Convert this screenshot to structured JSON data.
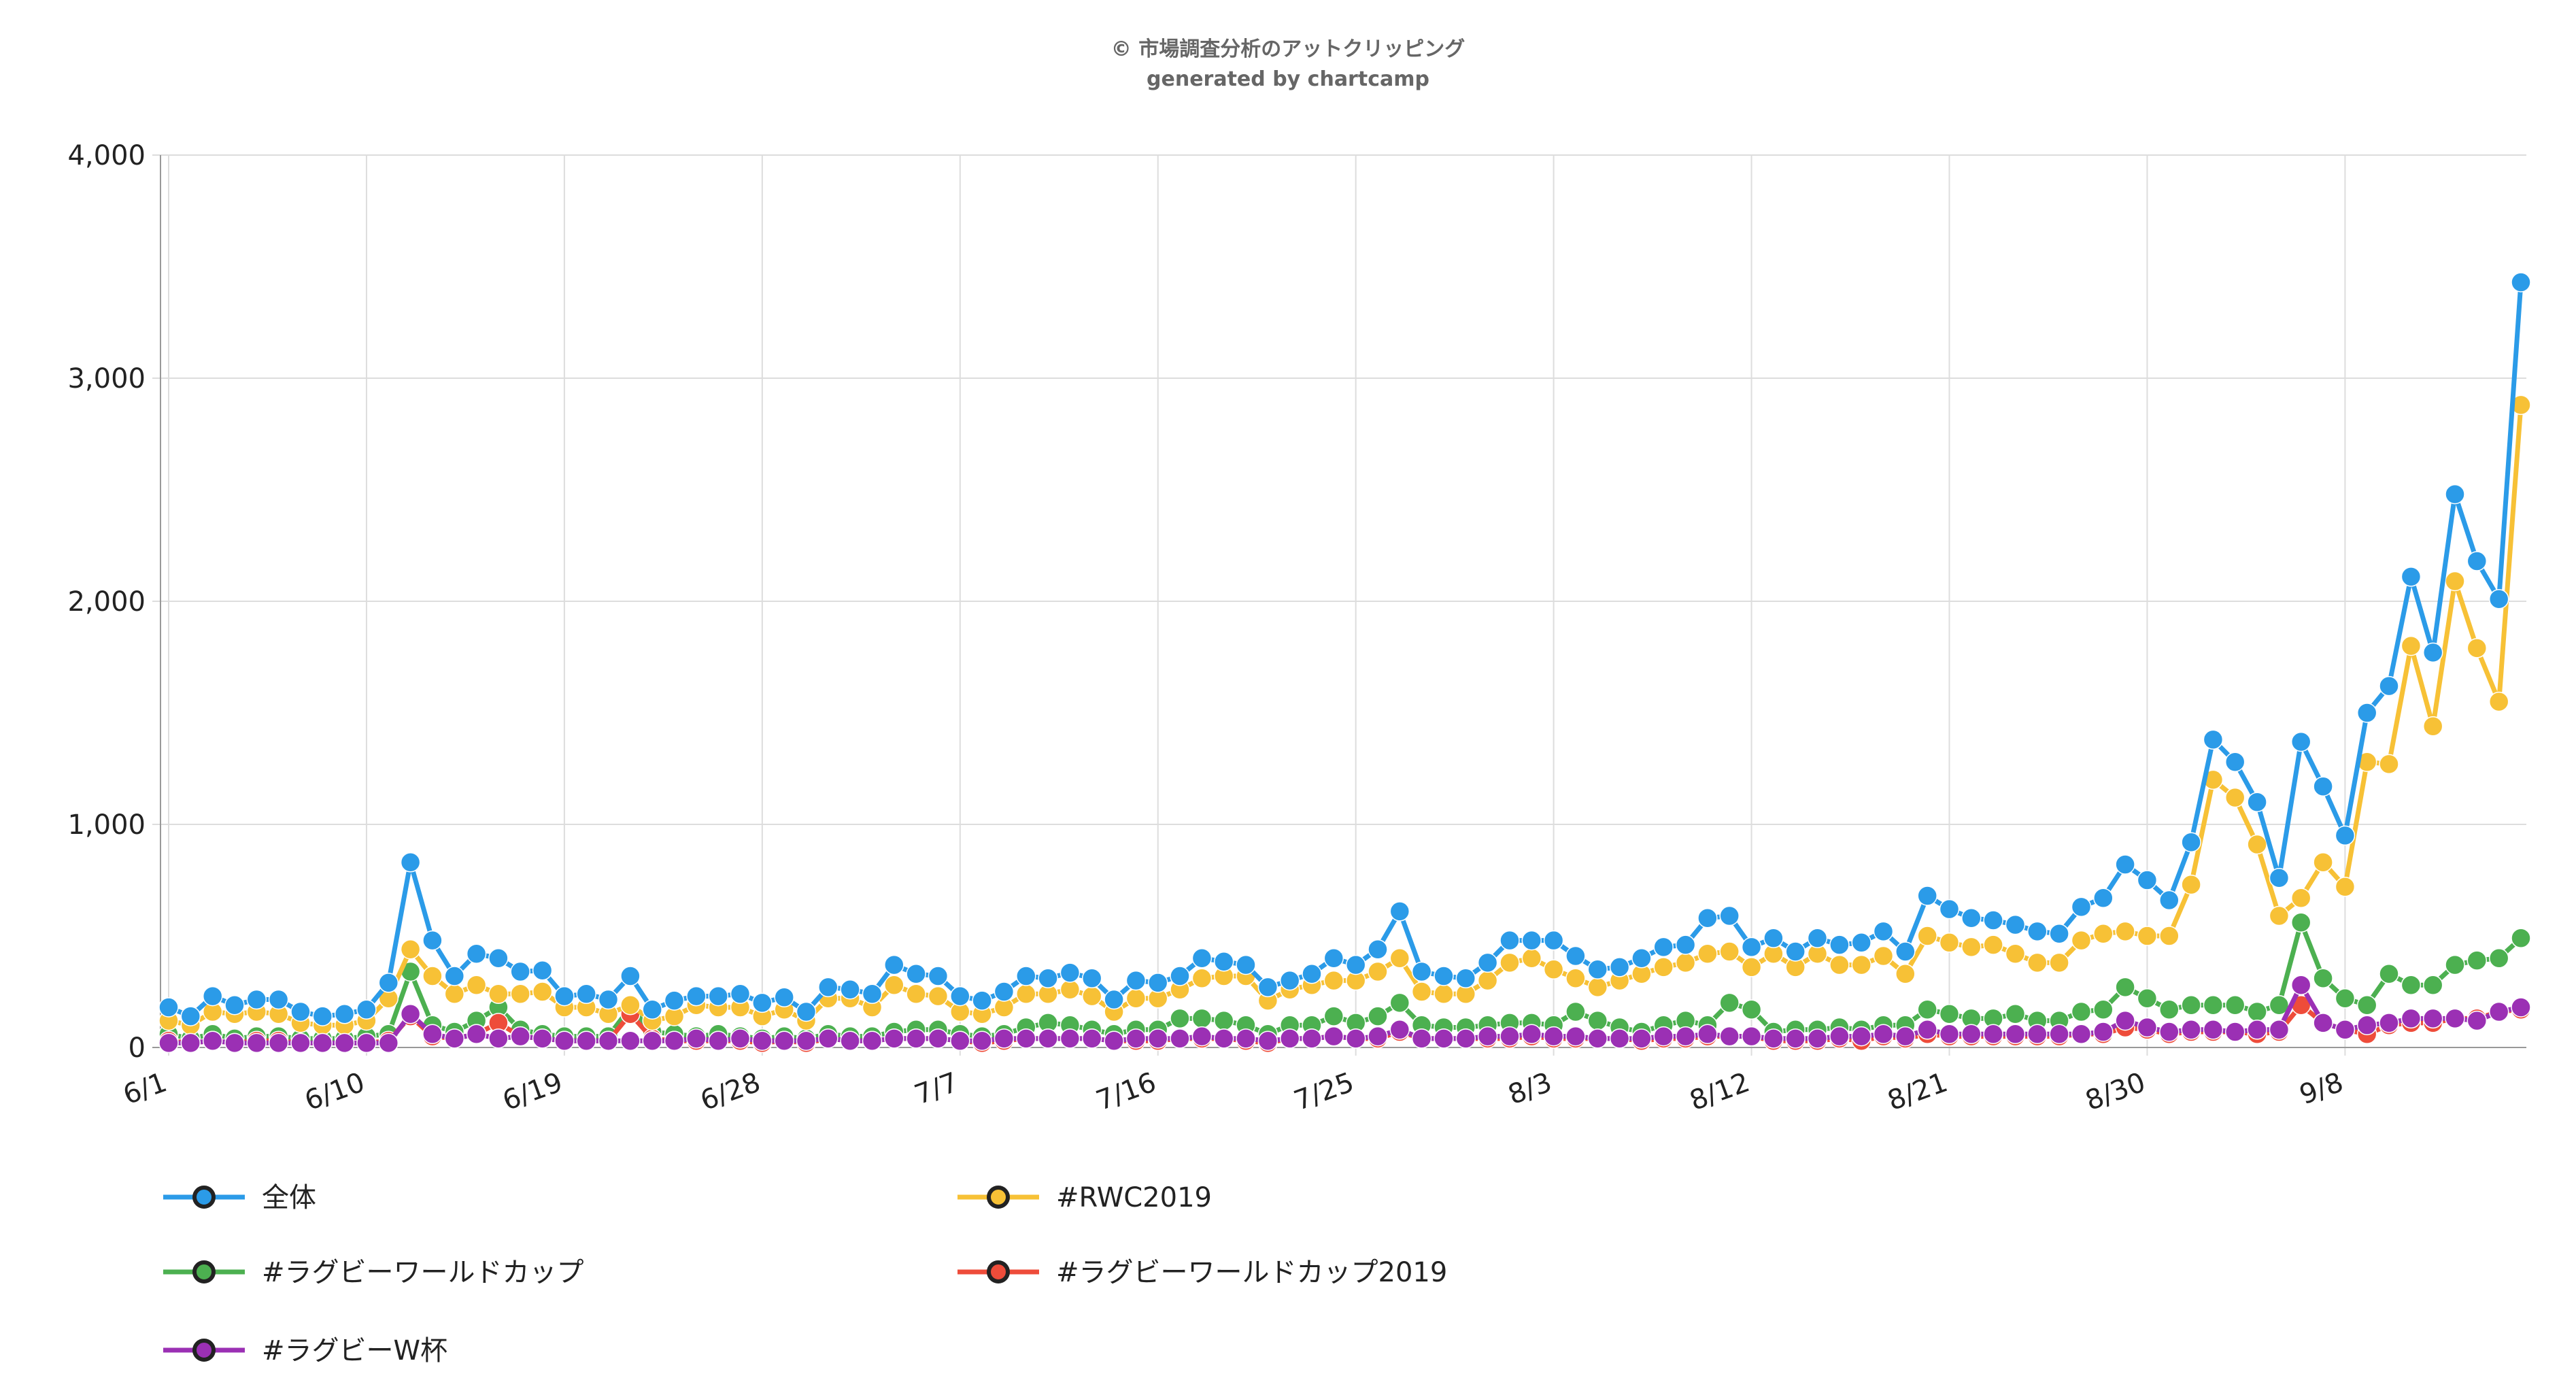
{
  "credits": {
    "line1": "© 市場調査分析のアットクリッピング",
    "line2": "generated by chartcamp"
  },
  "chart_data": {
    "type": "line",
    "title": "",
    "xlabel": "",
    "ylabel": "",
    "ylim": [
      0,
      4000
    ],
    "y_ticks": [
      0,
      1000,
      2000,
      3000,
      4000
    ],
    "y_tick_labels": [
      "0",
      "1,000",
      "2,000",
      "3,000",
      "4,000"
    ],
    "x_tick_labels": [
      "6/1",
      "6/10",
      "6/19",
      "6/28",
      "7/7",
      "7/16",
      "7/25",
      "8/3",
      "8/12",
      "8/21",
      "8/30",
      "9/8"
    ],
    "x_tick_every": 9,
    "grid": true,
    "legend_position": "bottom",
    "series": [
      {
        "name": "全体",
        "color": "#2b9be8",
        "values": [
          180,
          140,
          230,
          190,
          215,
          215,
          160,
          140,
          150,
          170,
          290,
          830,
          480,
          320,
          420,
          400,
          340,
          345,
          230,
          240,
          215,
          320,
          170,
          210,
          230,
          230,
          240,
          200,
          225,
          160,
          270,
          260,
          240,
          370,
          330,
          320,
          230,
          210,
          250,
          320,
          310,
          335,
          310,
          215,
          300,
          290,
          320,
          400,
          385,
          370,
          270,
          300,
          330,
          400,
          370,
          440,
          610,
          340,
          320,
          310,
          380,
          480,
          480,
          480,
          410,
          350,
          360,
          400,
          450,
          460,
          580,
          590,
          450,
          490,
          430,
          490,
          460,
          470,
          520,
          430,
          680,
          620,
          580,
          570,
          550,
          520,
          510,
          630,
          670,
          820,
          750,
          660,
          920,
          1380,
          1280,
          1100,
          760,
          1370,
          1170,
          950,
          1500,
          1620,
          2110,
          1770,
          2480,
          2180,
          2010,
          3430
        ]
      },
      {
        "name": "#RWC2019",
        "color": "#f7c136",
        "values": [
          120,
          100,
          160,
          150,
          160,
          150,
          110,
          100,
          100,
          120,
          220,
          440,
          320,
          240,
          280,
          240,
          240,
          250,
          180,
          180,
          150,
          190,
          120,
          140,
          190,
          180,
          180,
          140,
          170,
          120,
          220,
          220,
          180,
          280,
          240,
          230,
          160,
          150,
          180,
          240,
          240,
          260,
          230,
          160,
          220,
          220,
          260,
          310,
          320,
          320,
          210,
          260,
          280,
          300,
          300,
          340,
          400,
          250,
          240,
          240,
          300,
          380,
          400,
          350,
          310,
          270,
          300,
          330,
          360,
          380,
          420,
          430,
          360,
          420,
          360,
          420,
          370,
          370,
          410,
          330,
          500,
          470,
          450,
          460,
          420,
          380,
          380,
          480,
          510,
          520,
          500,
          500,
          730,
          1200,
          1120,
          910,
          590,
          670,
          830,
          720,
          1280,
          1270,
          1800,
          1440,
          2090,
          1790,
          1550,
          2880
        ]
      },
      {
        "name": "#ラグビーワールドカップ",
        "color": "#4cb050",
        "values": [
          60,
          40,
          60,
          40,
          50,
          50,
          40,
          40,
          40,
          50,
          60,
          340,
          100,
          70,
          120,
          180,
          80,
          60,
          50,
          50,
          50,
          180,
          70,
          60,
          50,
          60,
          50,
          40,
          50,
          40,
          60,
          50,
          50,
          70,
          80,
          80,
          60,
          50,
          60,
          90,
          110,
          100,
          80,
          60,
          80,
          80,
          130,
          130,
          120,
          100,
          60,
          100,
          100,
          140,
          110,
          140,
          200,
          100,
          90,
          90,
          100,
          110,
          110,
          100,
          160,
          120,
          90,
          70,
          100,
          120,
          100,
          200,
          170,
          70,
          80,
          80,
          90,
          80,
          100,
          100,
          170,
          150,
          130,
          130,
          150,
          120,
          120,
          160,
          170,
          270,
          220,
          170,
          190,
          190,
          190,
          160,
          190,
          560,
          310,
          220,
          190,
          330,
          280,
          280,
          370,
          390,
          400,
          490
        ]
      },
      {
        "name": "#ラグビーワールドカップ2019",
        "color": "#ee4c3a",
        "values": [
          30,
          20,
          30,
          20,
          30,
          30,
          20,
          20,
          20,
          20,
          30,
          140,
          50,
          40,
          60,
          110,
          50,
          40,
          30,
          30,
          30,
          150,
          40,
          30,
          30,
          30,
          30,
          20,
          30,
          20,
          40,
          30,
          30,
          40,
          40,
          40,
          30,
          20,
          30,
          40,
          40,
          40,
          40,
          30,
          30,
          30,
          40,
          40,
          40,
          30,
          20,
          40,
          40,
          50,
          40,
          40,
          70,
          40,
          40,
          40,
          40,
          40,
          50,
          40,
          40,
          40,
          40,
          30,
          40,
          40,
          50,
          50,
          50,
          30,
          30,
          30,
          40,
          30,
          50,
          40,
          60,
          50,
          50,
          50,
          50,
          50,
          50,
          60,
          60,
          90,
          80,
          60,
          70,
          70,
          70,
          60,
          70,
          190,
          110,
          80,
          60,
          100,
          110,
          110,
          130,
          130,
          160,
          170
        ]
      },
      {
        "name": "#ラグビーW杯",
        "color": "#9b30b4",
        "values": [
          20,
          20,
          30,
          20,
          20,
          20,
          20,
          20,
          20,
          20,
          20,
          150,
          60,
          40,
          60,
          40,
          50,
          40,
          30,
          30,
          30,
          30,
          30,
          30,
          40,
          30,
          40,
          30,
          30,
          30,
          40,
          30,
          30,
          40,
          40,
          40,
          30,
          30,
          40,
          40,
          40,
          40,
          40,
          30,
          40,
          40,
          40,
          50,
          40,
          40,
          30,
          40,
          40,
          50,
          40,
          50,
          80,
          40,
          40,
          40,
          50,
          50,
          60,
          50,
          50,
          40,
          40,
          40,
          50,
          50,
          60,
          50,
          50,
          40,
          40,
          40,
          50,
          50,
          60,
          50,
          80,
          60,
          60,
          60,
          60,
          60,
          60,
          60,
          70,
          120,
          90,
          70,
          80,
          80,
          70,
          80,
          80,
          280,
          110,
          80,
          100,
          110,
          130,
          130,
          130,
          120,
          160,
          180
        ]
      }
    ]
  }
}
